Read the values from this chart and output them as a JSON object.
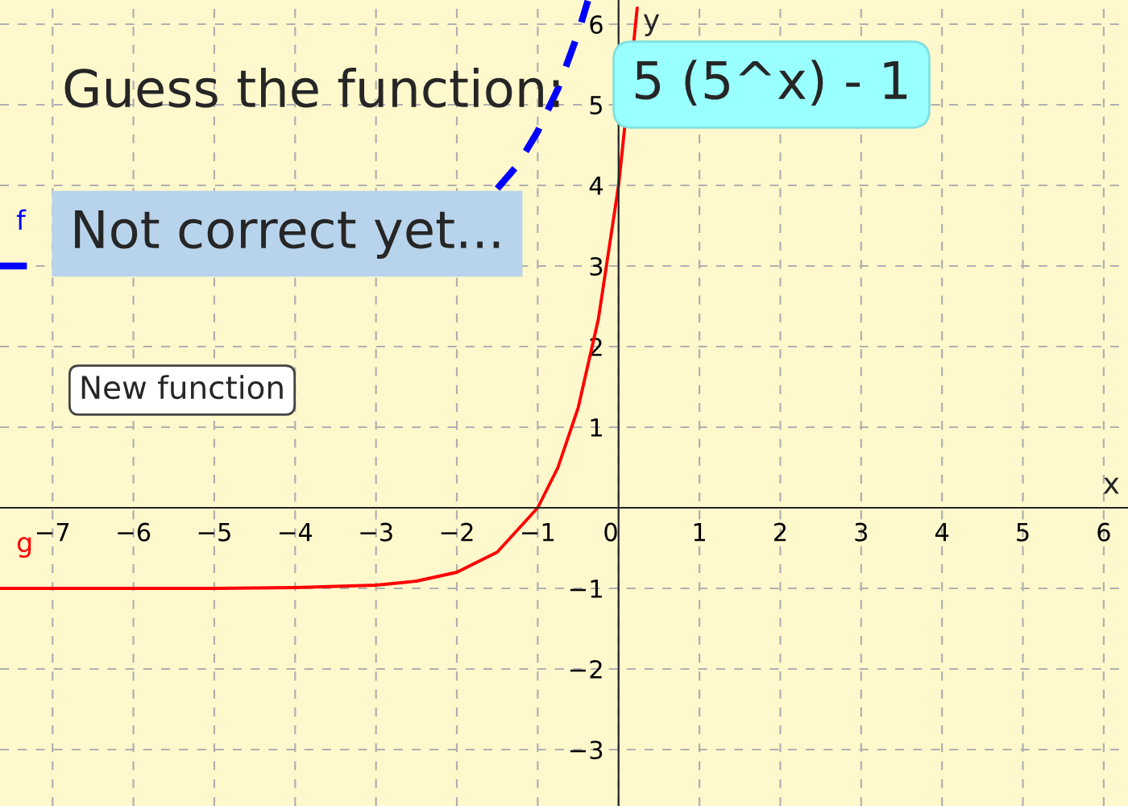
{
  "chart_data": {
    "type": "line",
    "xlabel": "x",
    "ylabel": "y",
    "xlim": [
      -7.65,
      6.3
    ],
    "ylim": [
      -3.7,
      6.3
    ],
    "xticks": [
      {
        "value": -7,
        "label": "−7"
      },
      {
        "value": -6,
        "label": "−6"
      },
      {
        "value": -5,
        "label": "−5"
      },
      {
        "value": -4,
        "label": "−4"
      },
      {
        "value": -3,
        "label": "−3"
      },
      {
        "value": -2,
        "label": "−2"
      },
      {
        "value": -1,
        "label": "−1"
      },
      0,
      1,
      2,
      3,
      4,
      5,
      6
    ],
    "yticks": [
      {
        "value": -3,
        "label": "−3"
      },
      {
        "value": -2,
        "label": "−2"
      },
      {
        "value": -1,
        "label": "−1"
      },
      {
        "value": 0,
        "label": null
      },
      1,
      2,
      3,
      4,
      5,
      6
    ],
    "grid": true,
    "legend": false,
    "series": [
      {
        "name": "f",
        "color": "#0000ff",
        "line_style": "dashed",
        "x": [
          -7.65,
          -7.2,
          -4.0,
          -1.5,
          -1.25,
          -1.0,
          -0.75,
          -0.5,
          -0.38
        ],
        "values": [
          3.0,
          3.0,
          null,
          3.96,
          4.25,
          4.67,
          5.2,
          5.89,
          6.29
        ]
      },
      {
        "name": "g",
        "color": "#ff0000",
        "line_style": "solid",
        "x": [
          -7.65,
          -5,
          -4,
          -3,
          -2.5,
          -2,
          -1.5,
          -1,
          -0.75,
          -0.5,
          -0.25,
          0,
          0.2,
          0.23
        ],
        "values": [
          -1.0,
          -1.0,
          -0.99,
          -0.96,
          -0.91,
          -0.8,
          -0.55,
          0,
          0.5,
          1.24,
          2.34,
          4,
          5.9,
          6.2
        ]
      }
    ],
    "annotations": [
      "Guess the function:",
      "5 (5^x) - 1",
      "Not correct yet...",
      "New function"
    ]
  }
}
